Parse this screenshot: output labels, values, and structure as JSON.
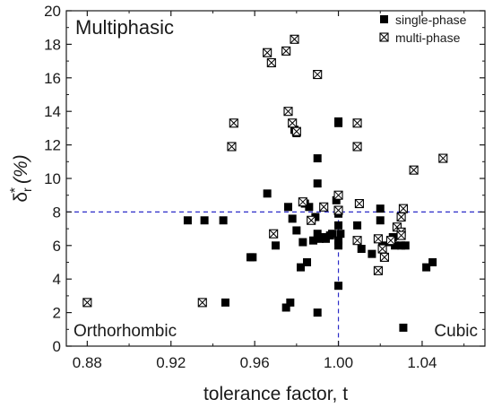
{
  "chart_data": {
    "type": "scatter",
    "xlabel": "tolerance factor, t",
    "ylabel_main": "δ",
    "ylabel_sub": "r",
    "ylabel_sup": "*",
    "ylabel_unit": "(%)",
    "xlim": [
      0.87,
      1.07
    ],
    "ylim": [
      0,
      20
    ],
    "xticks": [
      0.88,
      0.92,
      0.96,
      1.0,
      1.04
    ],
    "xtick_labels": [
      "0.88",
      "0.92",
      "0.96",
      "1.00",
      "1.04"
    ],
    "yticks": [
      0,
      2,
      4,
      6,
      8,
      10,
      12,
      14,
      16,
      18,
      20
    ],
    "ytick_labels": [
      "0",
      "2",
      "4",
      "6",
      "8",
      "10",
      "12",
      "14",
      "16",
      "18",
      "20"
    ],
    "grid": false,
    "legend_position": "top-right",
    "reference_lines": {
      "x": 1.0,
      "y": 8.0,
      "color": "#2b2bc8",
      "style": "dashed"
    },
    "annotations": {
      "top_left": "Multiphasic",
      "bottom_left": "Orthorhombic",
      "bottom_right": "Cubic"
    },
    "series": [
      {
        "name": "single-phase",
        "marker": "filled-square",
        "color": "#000000",
        "points": [
          [
            0.928,
            7.5
          ],
          [
            0.936,
            7.5
          ],
          [
            0.945,
            7.5
          ],
          [
            0.946,
            2.6
          ],
          [
            0.958,
            5.3
          ],
          [
            0.959,
            5.3
          ],
          [
            0.966,
            9.1
          ],
          [
            0.97,
            6.0
          ],
          [
            0.975,
            2.3
          ],
          [
            0.976,
            8.3
          ],
          [
            0.977,
            2.6
          ],
          [
            0.978,
            7.6
          ],
          [
            0.979,
            12.9
          ],
          [
            0.98,
            12.7
          ],
          [
            0.98,
            6.9
          ],
          [
            0.982,
            4.7
          ],
          [
            0.983,
            6.2
          ],
          [
            0.984,
            8.5
          ],
          [
            0.985,
            5.0
          ],
          [
            0.986,
            8.3
          ],
          [
            0.988,
            6.3
          ],
          [
            0.989,
            7.7
          ],
          [
            0.99,
            11.2
          ],
          [
            0.99,
            9.7
          ],
          [
            0.99,
            6.7
          ],
          [
            0.99,
            2.0
          ],
          [
            0.991,
            6.4
          ],
          [
            0.993,
            6.5
          ],
          [
            0.994,
            6.4
          ],
          [
            0.996,
            6.6
          ],
          [
            0.997,
            6.7
          ],
          [
            0.999,
            8.7
          ],
          [
            1.0,
            13.4
          ],
          [
            1.0,
            13.3
          ],
          [
            1.0,
            7.9
          ],
          [
            1.0,
            7.2
          ],
          [
            1.0,
            6.3
          ],
          [
            1.0,
            6.0
          ],
          [
            1.0,
            3.6
          ],
          [
            1.001,
            6.7
          ],
          [
            1.009,
            7.2
          ],
          [
            1.011,
            5.8
          ],
          [
            1.016,
            5.5
          ],
          [
            1.02,
            8.2
          ],
          [
            1.02,
            7.5
          ],
          [
            1.021,
            6.0
          ],
          [
            1.025,
            6.2
          ],
          [
            1.026,
            6.5
          ],
          [
            1.027,
            6.0
          ],
          [
            1.03,
            6.0
          ],
          [
            1.032,
            6.0
          ],
          [
            1.042,
            4.7
          ],
          [
            1.045,
            5.0
          ],
          [
            1.031,
            1.1
          ]
        ]
      },
      {
        "name": "multi-phase",
        "marker": "crossed-square",
        "color": "#000000",
        "points": [
          [
            0.88,
            2.6
          ],
          [
            0.935,
            2.6
          ],
          [
            0.949,
            11.9
          ],
          [
            0.95,
            13.3
          ],
          [
            0.966,
            17.5
          ],
          [
            0.968,
            16.9
          ],
          [
            0.969,
            6.7
          ],
          [
            0.975,
            17.6
          ],
          [
            0.976,
            14.0
          ],
          [
            0.978,
            13.3
          ],
          [
            0.979,
            18.3
          ],
          [
            0.98,
            12.8
          ],
          [
            0.983,
            8.6
          ],
          [
            0.987,
            7.5
          ],
          [
            0.99,
            16.2
          ],
          [
            0.993,
            8.3
          ],
          [
            1.0,
            9.0
          ],
          [
            1.0,
            8.1
          ],
          [
            1.009,
            13.3
          ],
          [
            1.009,
            11.9
          ],
          [
            1.009,
            6.3
          ],
          [
            1.01,
            8.5
          ],
          [
            1.019,
            6.4
          ],
          [
            1.019,
            4.5
          ],
          [
            1.021,
            5.8
          ],
          [
            1.022,
            5.3
          ],
          [
            1.025,
            6.3
          ],
          [
            1.028,
            7.1
          ],
          [
            1.03,
            6.8
          ],
          [
            1.03,
            7.7
          ],
          [
            1.03,
            6.6
          ],
          [
            1.031,
            8.2
          ],
          [
            1.036,
            10.5
          ],
          [
            1.05,
            11.2
          ]
        ]
      }
    ]
  }
}
